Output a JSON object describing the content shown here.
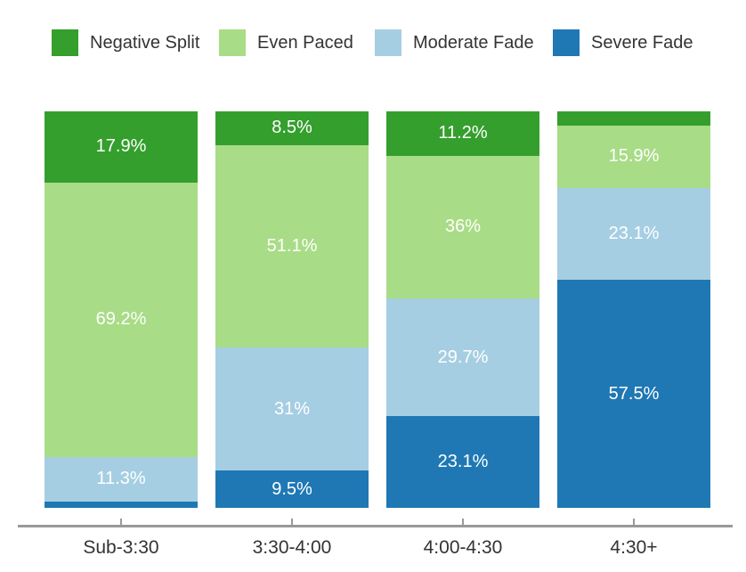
{
  "chart_data": {
    "type": "bar",
    "stacked": true,
    "percent_stacked": true,
    "title": "",
    "xlabel": "",
    "ylabel": "",
    "ylim": [
      0,
      100
    ],
    "grid": false,
    "legend_position": "top",
    "categories": [
      "Sub-3:30",
      "3:30-4:00",
      "4:00-4:30",
      "4:30+"
    ],
    "series": [
      {
        "name": "Negative Split",
        "color": "#349f2d",
        "values": [
          17.9,
          8.5,
          11.2,
          3.5
        ],
        "labels": [
          "17.9%",
          "8.5%",
          "11.2%",
          ""
        ]
      },
      {
        "name": "Even Paced",
        "color": "#a9dc86",
        "values": [
          69.2,
          51.1,
          36,
          15.9
        ],
        "labels": [
          "69.2%",
          "51.1%",
          "36%",
          "15.9%"
        ]
      },
      {
        "name": "Moderate Fade",
        "color": "#a6cee3",
        "values": [
          11.3,
          31,
          29.7,
          23.1
        ],
        "labels": [
          "11.3%",
          "31%",
          "29.7%",
          "23.1%"
        ]
      },
      {
        "name": "Severe Fade",
        "color": "#1f78b4",
        "values": [
          1.6,
          9.5,
          23.1,
          57.5
        ],
        "labels": [
          "",
          "9.5%",
          "23.1%",
          "57.5%"
        ]
      }
    ],
    "colors": {
      "axis_line": "#999999",
      "axis_text": "#333333",
      "segment_label_text": "#ffffff",
      "background": "#ffffff"
    }
  }
}
